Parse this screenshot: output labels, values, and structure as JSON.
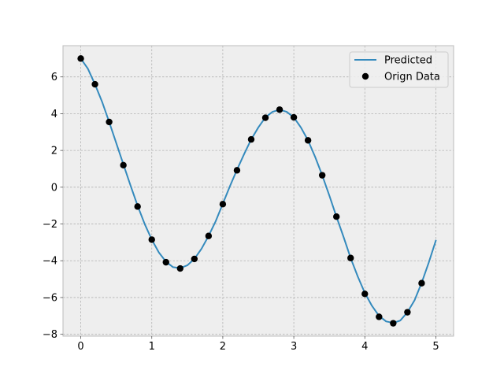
{
  "chart_data": {
    "type": "line",
    "title": "",
    "xlabel": "",
    "ylabel": "",
    "xlim": [
      -0.25,
      5.25
    ],
    "ylim": [
      -8.1,
      7.7
    ],
    "x_ticks": [
      0,
      1,
      2,
      3,
      4,
      5
    ],
    "x_tick_labels": [
      "0",
      "1",
      "2",
      "3",
      "4",
      "5"
    ],
    "y_ticks": [
      -8,
      -6,
      -4,
      -2,
      0,
      2,
      4,
      6
    ],
    "y_tick_labels": [
      "−8",
      "−6",
      "−4",
      "−2",
      "0",
      "2",
      "4",
      "6"
    ],
    "grid": true,
    "legend_position": "top-right",
    "legend": [
      "Predicted",
      "Orign Data"
    ],
    "series": [
      {
        "name": "Predicted",
        "kind": "line",
        "color": "#348abd",
        "x": [
          0,
          0.1,
          0.2,
          0.3,
          0.4,
          0.5,
          0.6,
          0.7,
          0.8,
          0.9,
          1.0,
          1.1,
          1.2,
          1.3,
          1.4,
          1.5,
          1.6,
          1.7,
          1.8,
          1.9,
          2.0,
          2.1,
          2.2,
          2.3,
          2.4,
          2.5,
          2.6,
          2.7,
          2.8,
          2.9,
          3.0,
          3.1,
          3.2,
          3.3,
          3.4,
          3.5,
          3.6,
          3.7,
          3.8,
          3.9,
          4.0,
          4.1,
          4.2,
          4.3,
          4.4,
          4.5,
          4.6,
          4.7,
          4.8,
          4.9,
          5.0
        ],
        "y": [
          7.0,
          6.45,
          5.6,
          4.65,
          3.55,
          2.4,
          1.25,
          0.1,
          -1.0,
          -2.0,
          -2.85,
          -3.55,
          -4.05,
          -4.35,
          -4.4,
          -4.25,
          -3.9,
          -3.35,
          -2.65,
          -1.85,
          -0.9,
          0.05,
          0.95,
          1.8,
          2.6,
          3.25,
          3.8,
          4.1,
          4.22,
          4.1,
          3.8,
          3.25,
          2.55,
          1.65,
          0.65,
          -0.45,
          -1.6,
          -2.7,
          -3.85,
          -4.85,
          -5.75,
          -6.45,
          -7.0,
          -7.3,
          -7.38,
          -7.25,
          -6.8,
          -6.15,
          -5.2,
          -4.1,
          -2.9
        ]
      },
      {
        "name": "Orign Data",
        "kind": "scatter",
        "color": "#000000",
        "x": [
          0,
          0.2,
          0.4,
          0.6,
          0.8,
          1.0,
          1.2,
          1.4,
          1.6,
          1.8,
          2.0,
          2.2,
          2.4,
          2.6,
          2.8,
          3.0,
          3.2,
          3.4,
          3.6,
          3.8,
          4.0,
          4.2,
          4.4,
          4.6,
          4.8
        ],
        "y": [
          7.0,
          5.6,
          3.55,
          1.2,
          -1.05,
          -2.85,
          -4.08,
          -4.42,
          -3.9,
          -2.65,
          -0.92,
          0.92,
          2.6,
          3.78,
          4.22,
          3.8,
          2.55,
          0.65,
          -1.6,
          -3.85,
          -5.8,
          -7.05,
          -7.4,
          -6.8,
          -5.22
        ]
      }
    ],
    "colors": {
      "axes_background": "#eeeeee",
      "figure_background": "#ffffff",
      "grid": "#b2b2b2",
      "spine": "#bcbcbc",
      "tick_label": "#000000"
    }
  }
}
